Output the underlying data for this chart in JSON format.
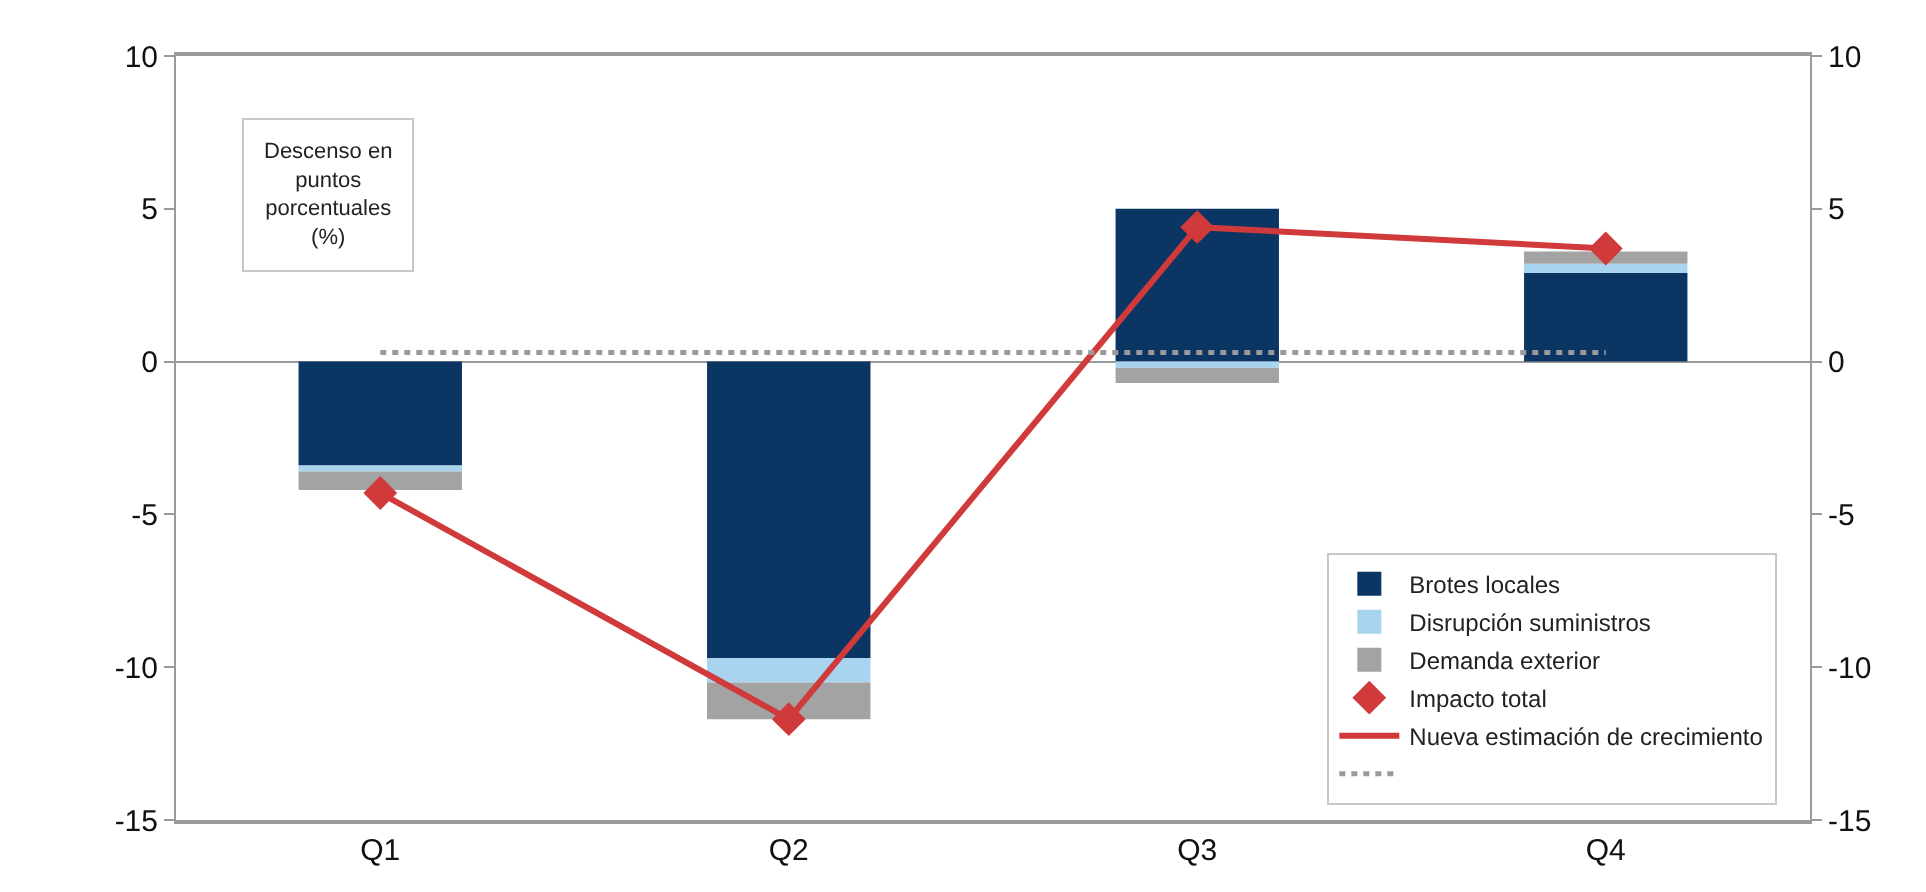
{
  "chart_data": {
    "type": "bar",
    "stacked": true,
    "categories": [
      "Q1",
      "Q2",
      "Q3",
      "Q4"
    ],
    "series": [
      {
        "name": "Brotes locales",
        "color": "#0b3563",
        "values": [
          -3.4,
          -9.7,
          5.0,
          2.9
        ]
      },
      {
        "name": "Disrupción suministros",
        "color": "#a9d4f0",
        "values": [
          -0.2,
          -0.8,
          -0.2,
          0.3
        ]
      },
      {
        "name": "Demanda exterior",
        "color": "#a3a3a3",
        "values": [
          -0.6,
          -1.2,
          -0.5,
          0.4
        ]
      },
      {
        "name": "Impacto total",
        "type": "scatter",
        "color": "#d03a3a",
        "marker": "diamond",
        "values": [
          -4.3,
          -11.7,
          4.4,
          3.7
        ]
      },
      {
        "name": "Nueva estimación de crecimiento",
        "type": "line",
        "color": "#d03a3a",
        "marker": "none",
        "line_style": "solid",
        "values": [
          -4.3,
          -11.7,
          4.4,
          3.7
        ]
      },
      {
        "type": "line",
        "color": "#9a9a9a",
        "marker": "none",
        "line_style": "dotted",
        "values": [
          0.3,
          0.3,
          0.3,
          0.3
        ]
      }
    ],
    "ylim": [
      -15,
      10
    ],
    "yticks": [
      -15,
      -10,
      -5,
      0,
      5,
      10
    ],
    "y2lim": [
      -15,
      10
    ],
    "y2ticks": [
      -15,
      -10,
      -5,
      0,
      5,
      10
    ],
    "legend": "bottom right",
    "annotations": [
      "Descenso en\npuntos\nporcentuales\n(%)"
    ]
  }
}
